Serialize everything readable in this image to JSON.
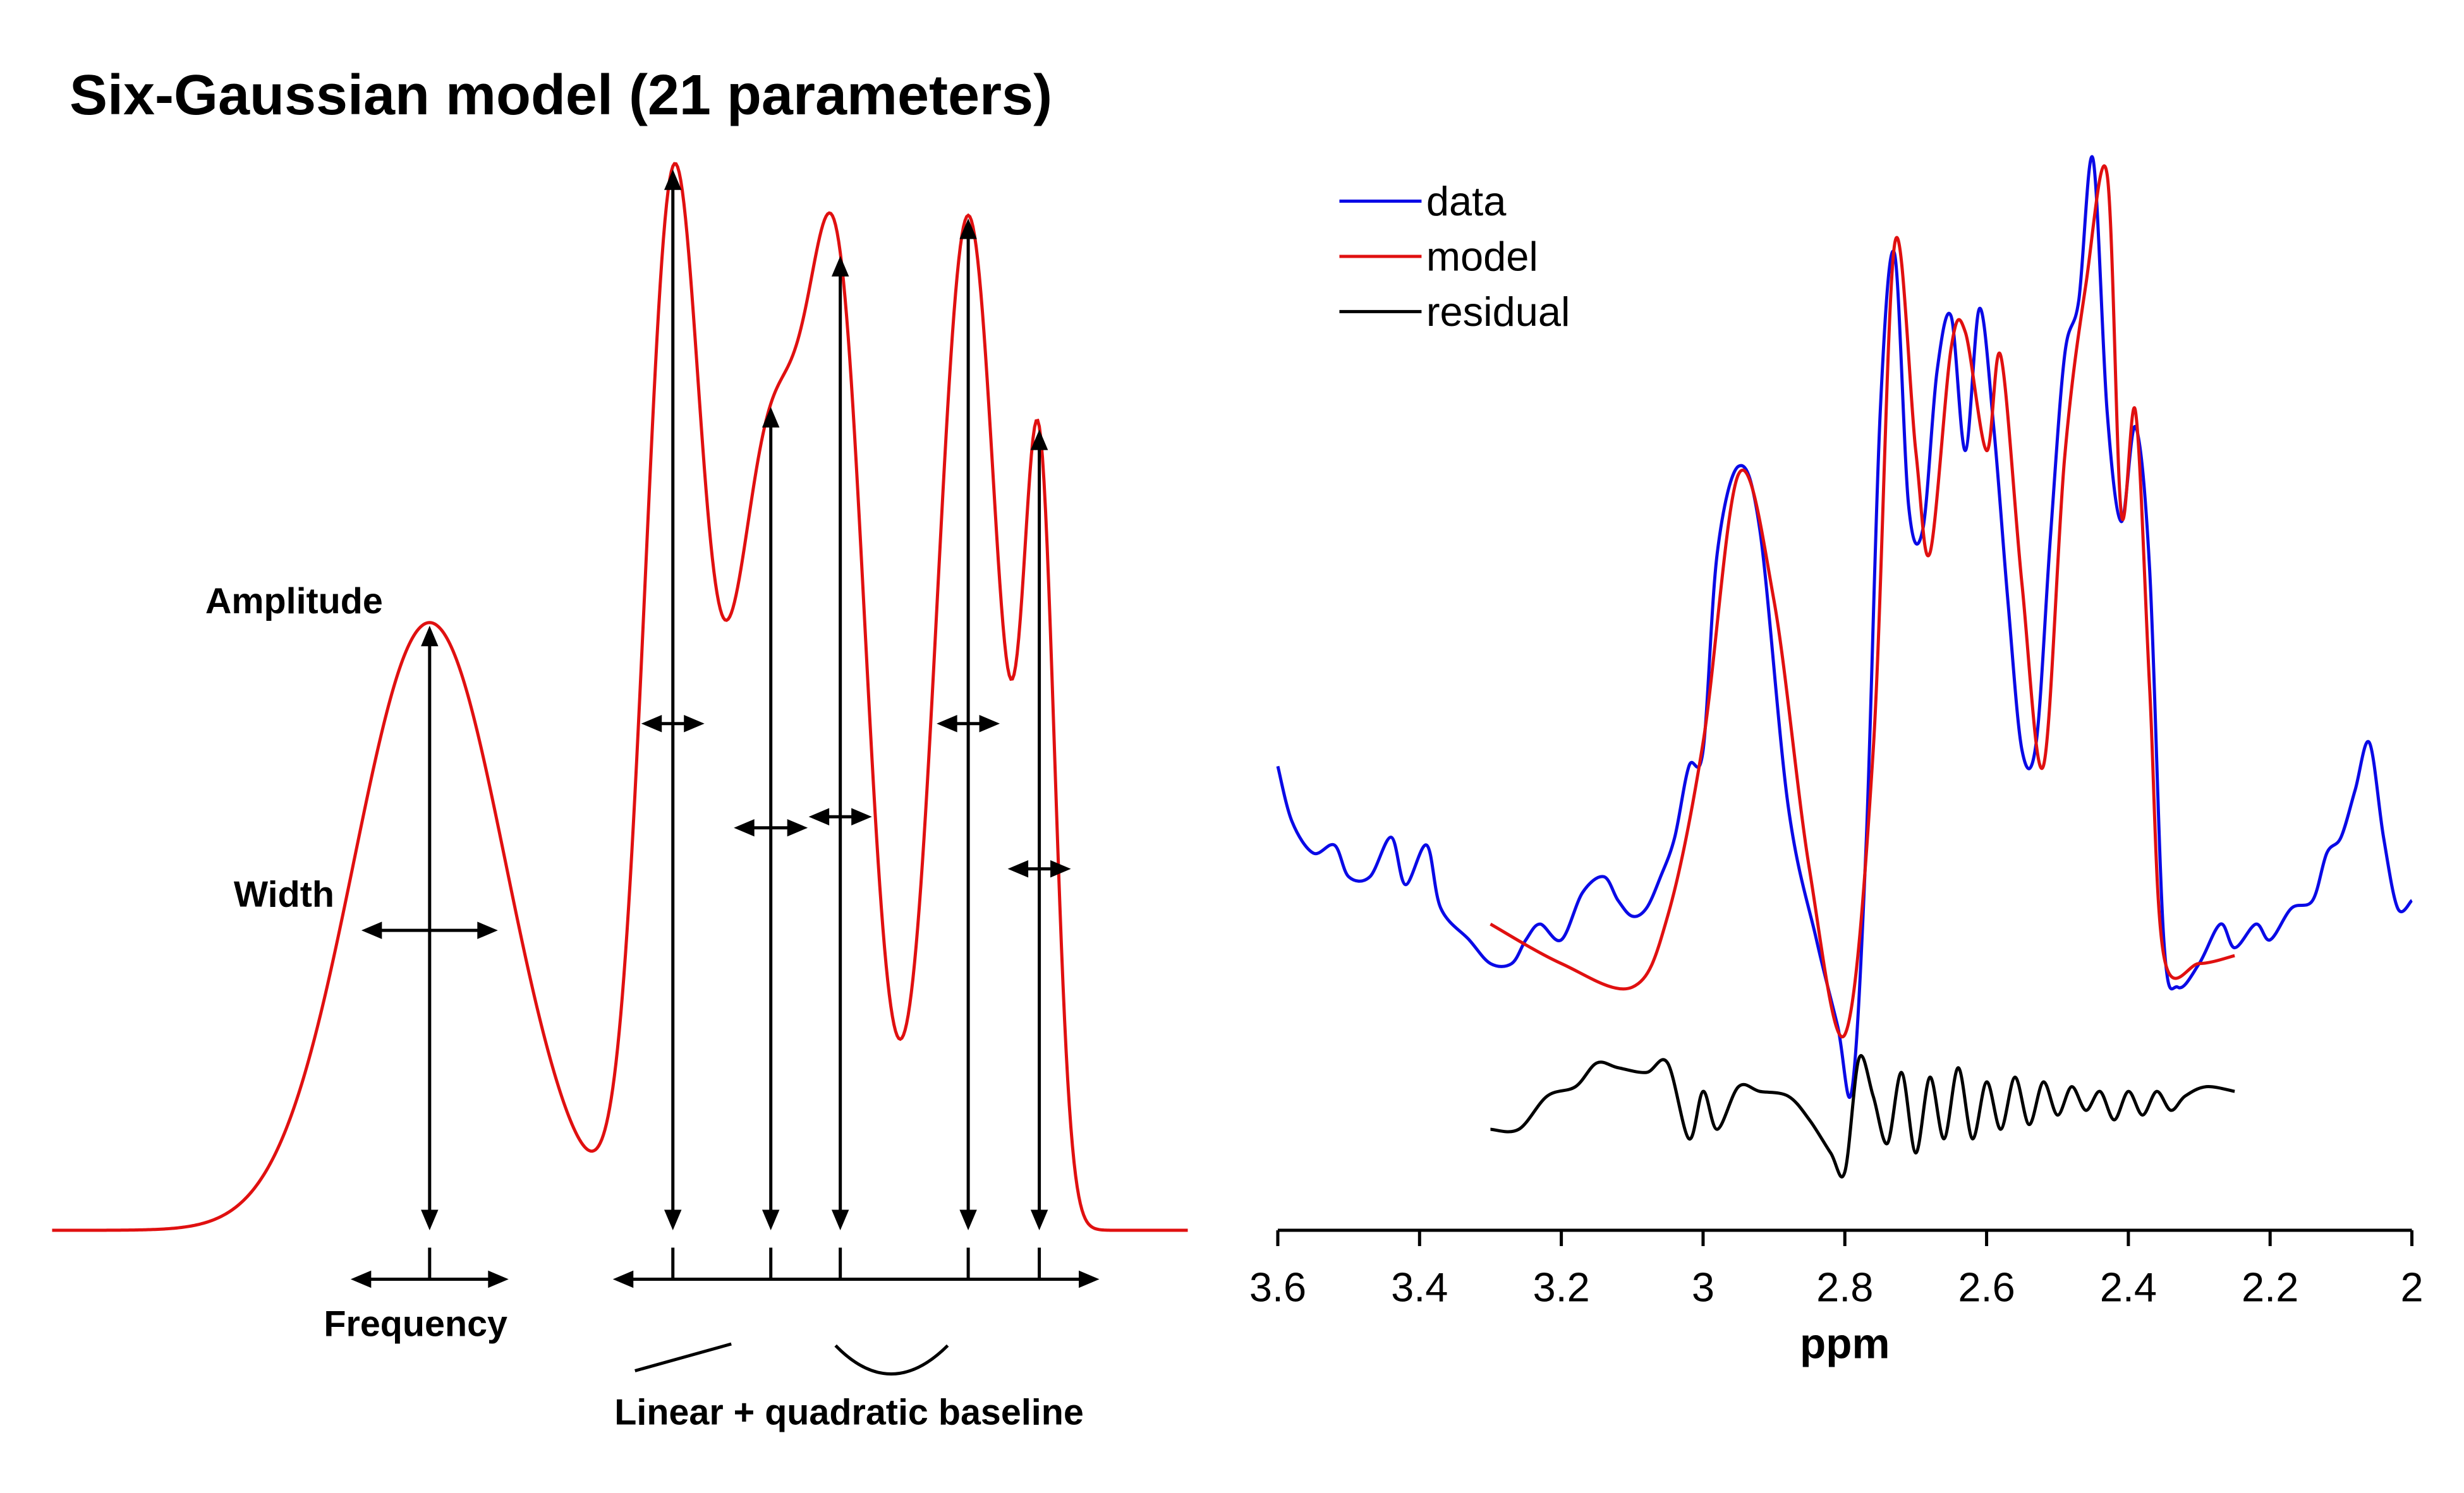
{
  "title": "Six-Gaussian model (21 parameters)",
  "colors": {
    "model": "#e01010",
    "data": "#0a0ae6",
    "residual": "#000000",
    "annotation": "#000000"
  },
  "chart_data": [
    {
      "type": "line",
      "role": "schematic",
      "annotations": {
        "amplitude": "Amplitude",
        "width": "Width",
        "frequency": "Frequency",
        "baseline": "Linear + quadratic baseline"
      },
      "gaussians": [
        {
          "center": 272,
          "amplitude": 1.0,
          "width": 48
        },
        {
          "center": 426,
          "amplitude": 1.67,
          "width": 18
        },
        {
          "center": 488,
          "amplitude": 1.29,
          "width": 26
        },
        {
          "center": 532,
          "amplitude": 1.3,
          "width": 18
        },
        {
          "center": 613,
          "amplitude": 1.67,
          "width": 20
        },
        {
          "center": 658,
          "amplitude": 1.19,
          "width": 10
        }
      ],
      "x_range": [
        33,
        752
      ]
    },
    {
      "type": "line",
      "xlabel": "ppm",
      "xlim": [
        3.6,
        2.0
      ],
      "x_reversed": true,
      "x_ticks": [
        "3.6",
        "3.4",
        "3.2",
        "3",
        "2.8",
        "2.6",
        "2.4",
        "2.2",
        "2"
      ],
      "legend": {
        "position": "top-left",
        "entries": [
          "data",
          "model",
          "residual"
        ]
      },
      "series": [
        {
          "name": "data",
          "x": [
            3.6,
            3.58,
            3.55,
            3.52,
            3.5,
            3.47,
            3.44,
            3.42,
            3.39,
            3.37,
            3.33,
            3.3,
            3.27,
            3.25,
            3.23,
            3.2,
            3.17,
            3.14,
            3.12,
            3.1,
            3.08,
            3.06,
            3.04,
            3.02,
            3.0,
            2.98,
            2.95,
            2.92,
            2.88,
            2.84,
            2.81,
            2.79,
            2.77,
            2.75,
            2.73,
            2.71,
            2.69,
            2.67,
            2.65,
            2.63,
            2.61,
            2.59,
            2.57,
            2.55,
            2.53,
            2.51,
            2.49,
            2.47,
            2.45,
            2.43,
            2.41,
            2.39,
            2.37,
            2.35,
            2.33,
            2.3,
            2.27,
            2.25,
            2.22,
            2.2,
            2.17,
            2.14,
            2.12,
            2.1,
            2.08,
            2.06,
            2.04,
            2.02,
            2.0
          ],
          "y": [
            0.55,
            0.48,
            0.44,
            0.45,
            0.41,
            0.41,
            0.46,
            0.4,
            0.45,
            0.37,
            0.33,
            0.3,
            0.3,
            0.33,
            0.35,
            0.33,
            0.39,
            0.41,
            0.38,
            0.36,
            0.37,
            0.41,
            0.46,
            0.55,
            0.57,
            0.82,
            0.93,
            0.85,
            0.5,
            0.33,
            0.22,
            0.14,
            0.45,
            1.0,
            1.2,
            0.88,
            0.85,
            1.05,
            1.12,
            0.95,
            1.13,
            0.98,
            0.76,
            0.57,
            0.58,
            0.84,
            1.07,
            1.14,
            1.32,
            1.0,
            0.86,
            0.98,
            0.8,
            0.33,
            0.27,
            0.3,
            0.35,
            0.32,
            0.35,
            0.33,
            0.37,
            0.38,
            0.44,
            0.46,
            0.52,
            0.58,
            0.46,
            0.37,
            0.38
          ]
        },
        {
          "name": "model",
          "x": [
            3.3,
            3.2,
            3.1,
            3.05,
            3.0,
            2.95,
            2.9,
            2.85,
            2.8,
            2.76,
            2.73,
            2.7,
            2.68,
            2.65,
            2.63,
            2.6,
            2.58,
            2.55,
            2.52,
            2.49,
            2.46,
            2.43,
            2.41,
            2.39,
            2.37,
            2.35,
            2.3,
            2.25
          ],
          "y": [
            0.35,
            0.3,
            0.27,
            0.36,
            0.58,
            0.92,
            0.76,
            0.42,
            0.21,
            0.57,
            1.21,
            0.95,
            0.82,
            1.08,
            1.1,
            0.95,
            1.07,
            0.78,
            0.55,
            0.94,
            1.16,
            1.3,
            0.87,
            1.0,
            0.65,
            0.31,
            0.3,
            0.31
          ]
        },
        {
          "name": "residual",
          "x": [
            3.3,
            3.26,
            3.22,
            3.18,
            3.15,
            3.12,
            3.08,
            3.05,
            3.02,
            3.0,
            2.98,
            2.95,
            2.92,
            2.88,
            2.85,
            2.82,
            2.8,
            2.78,
            2.76,
            2.74,
            2.72,
            2.7,
            2.68,
            2.66,
            2.64,
            2.62,
            2.6,
            2.58,
            2.56,
            2.54,
            2.52,
            2.5,
            2.48,
            2.46,
            2.44,
            2.42,
            2.4,
            2.38,
            2.36,
            2.34,
            2.32,
            2.29,
            2.25
          ],
          "y": [
            -0.05,
            -0.05,
            0.02,
            0.04,
            0.09,
            0.08,
            0.07,
            0.09,
            -0.07,
            0.03,
            -0.05,
            0.04,
            0.03,
            0.02,
            -0.03,
            -0.1,
            -0.14,
            0.1,
            0.02,
            -0.08,
            0.07,
            -0.1,
            0.06,
            -0.07,
            0.08,
            -0.07,
            0.05,
            -0.05,
            0.06,
            -0.04,
            0.05,
            -0.02,
            0.04,
            -0.01,
            0.03,
            -0.03,
            0.03,
            -0.02,
            0.03,
            -0.01,
            0.02,
            0.04,
            0.03
          ]
        }
      ]
    }
  ]
}
